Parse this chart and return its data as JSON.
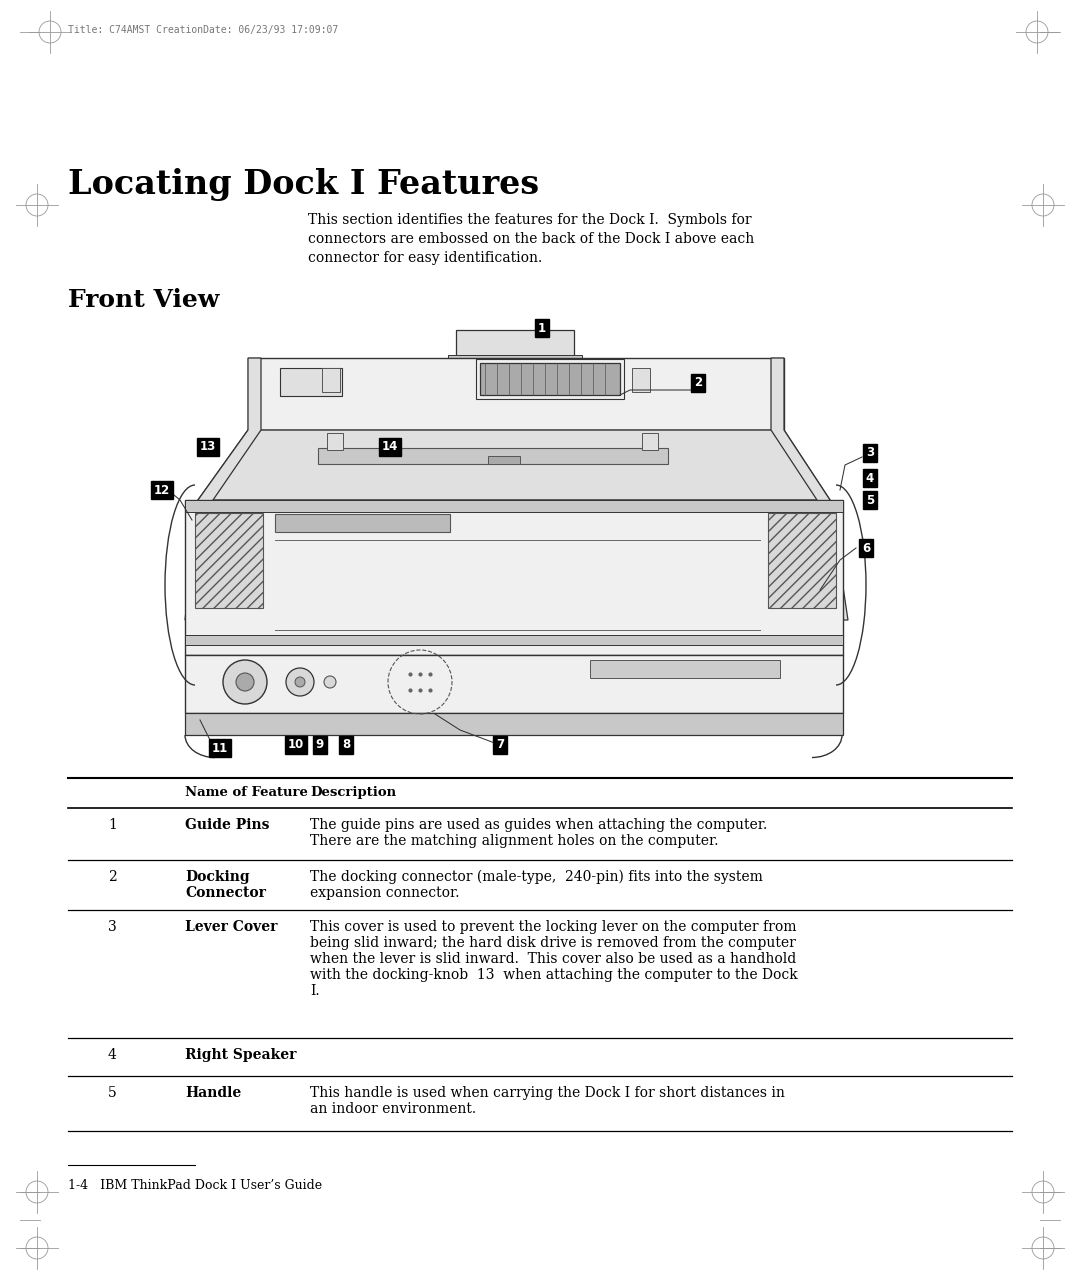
{
  "page_title": "Locating Dock I Features",
  "header_text": "Title: C74AMST CreationDate: 06/23/93 17:09:07",
  "section_title": "Front View",
  "intro_text_line1": "This section identifies the features for the Dock I.  Symbols for",
  "intro_text_line2": "connectors are embossed on the back of the Dock I above each",
  "intro_text_line3": "connector for easy identification.",
  "footer_text": "1-4   IBM ThinkPad Dock I User’s Guide",
  "table_rows": [
    [
      "1",
      "Guide Pins",
      "The guide pins are used as guides when attaching the computer.\nThere are the matching alignment holes on the computer."
    ],
    [
      "2",
      "Docking\nConnector",
      "The docking connector (male-type,  240-pin) fits into the system\nexpansion connector."
    ],
    [
      "3",
      "Lever Cover",
      "This cover is used to prevent the locking lever on the computer from\nbeing slid inward; the hard disk drive is removed from the computer\nwhen the lever is slid inward.  This cover also be used as a handhold\nwith the docking-knob  13  when attaching the computer to the Dock\nI."
    ],
    [
      "4",
      "Right Speaker",
      ""
    ],
    [
      "5",
      "Handle",
      "This handle is used when carrying the Dock I for short distances in\nan indoor environment."
    ]
  ],
  "bg_color": "#ffffff",
  "fig_width": 10.8,
  "fig_height": 12.77
}
